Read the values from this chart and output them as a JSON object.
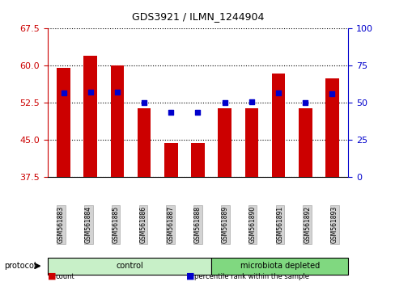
{
  "title": "GDS3921 / ILMN_1244904",
  "samples": [
    "GSM561883",
    "GSM561884",
    "GSM561885",
    "GSM561886",
    "GSM561887",
    "GSM561888",
    "GSM561889",
    "GSM561890",
    "GSM561891",
    "GSM561892",
    "GSM561893"
  ],
  "count_values": [
    59.5,
    62.0,
    60.0,
    51.5,
    44.5,
    44.5,
    51.5,
    51.5,
    58.5,
    51.5,
    57.5
  ],
  "percentile_values": [
    57.0,
    57.5,
    57.5,
    50.5,
    43.5,
    43.5,
    50.5,
    51.0,
    56.5,
    50.5,
    56.0
  ],
  "ylim_left": [
    37.5,
    67.5
  ],
  "ylim_right": [
    0,
    100
  ],
  "yticks_left": [
    37.5,
    45.0,
    52.5,
    60.0,
    67.5
  ],
  "yticks_right": [
    0,
    25,
    50,
    75,
    100
  ],
  "groups": [
    {
      "label": "control",
      "start": 0,
      "end": 6,
      "color": "#c8f0c8"
    },
    {
      "label": "microbiota depleted",
      "start": 6,
      "end": 11,
      "color": "#80d880"
    }
  ],
  "bar_color": "#cc0000",
  "dot_color": "#0000cc",
  "bar_width": 0.5,
  "background_color": "#ffffff",
  "protocol_label": "protocol",
  "legend_items": [
    {
      "color": "#cc0000",
      "label": "count"
    },
    {
      "color": "#0000cc",
      "label": "percentile rank within the sample"
    }
  ],
  "grid_style": "dotted",
  "left_axis_color": "#cc0000",
  "right_axis_color": "#0000cc"
}
